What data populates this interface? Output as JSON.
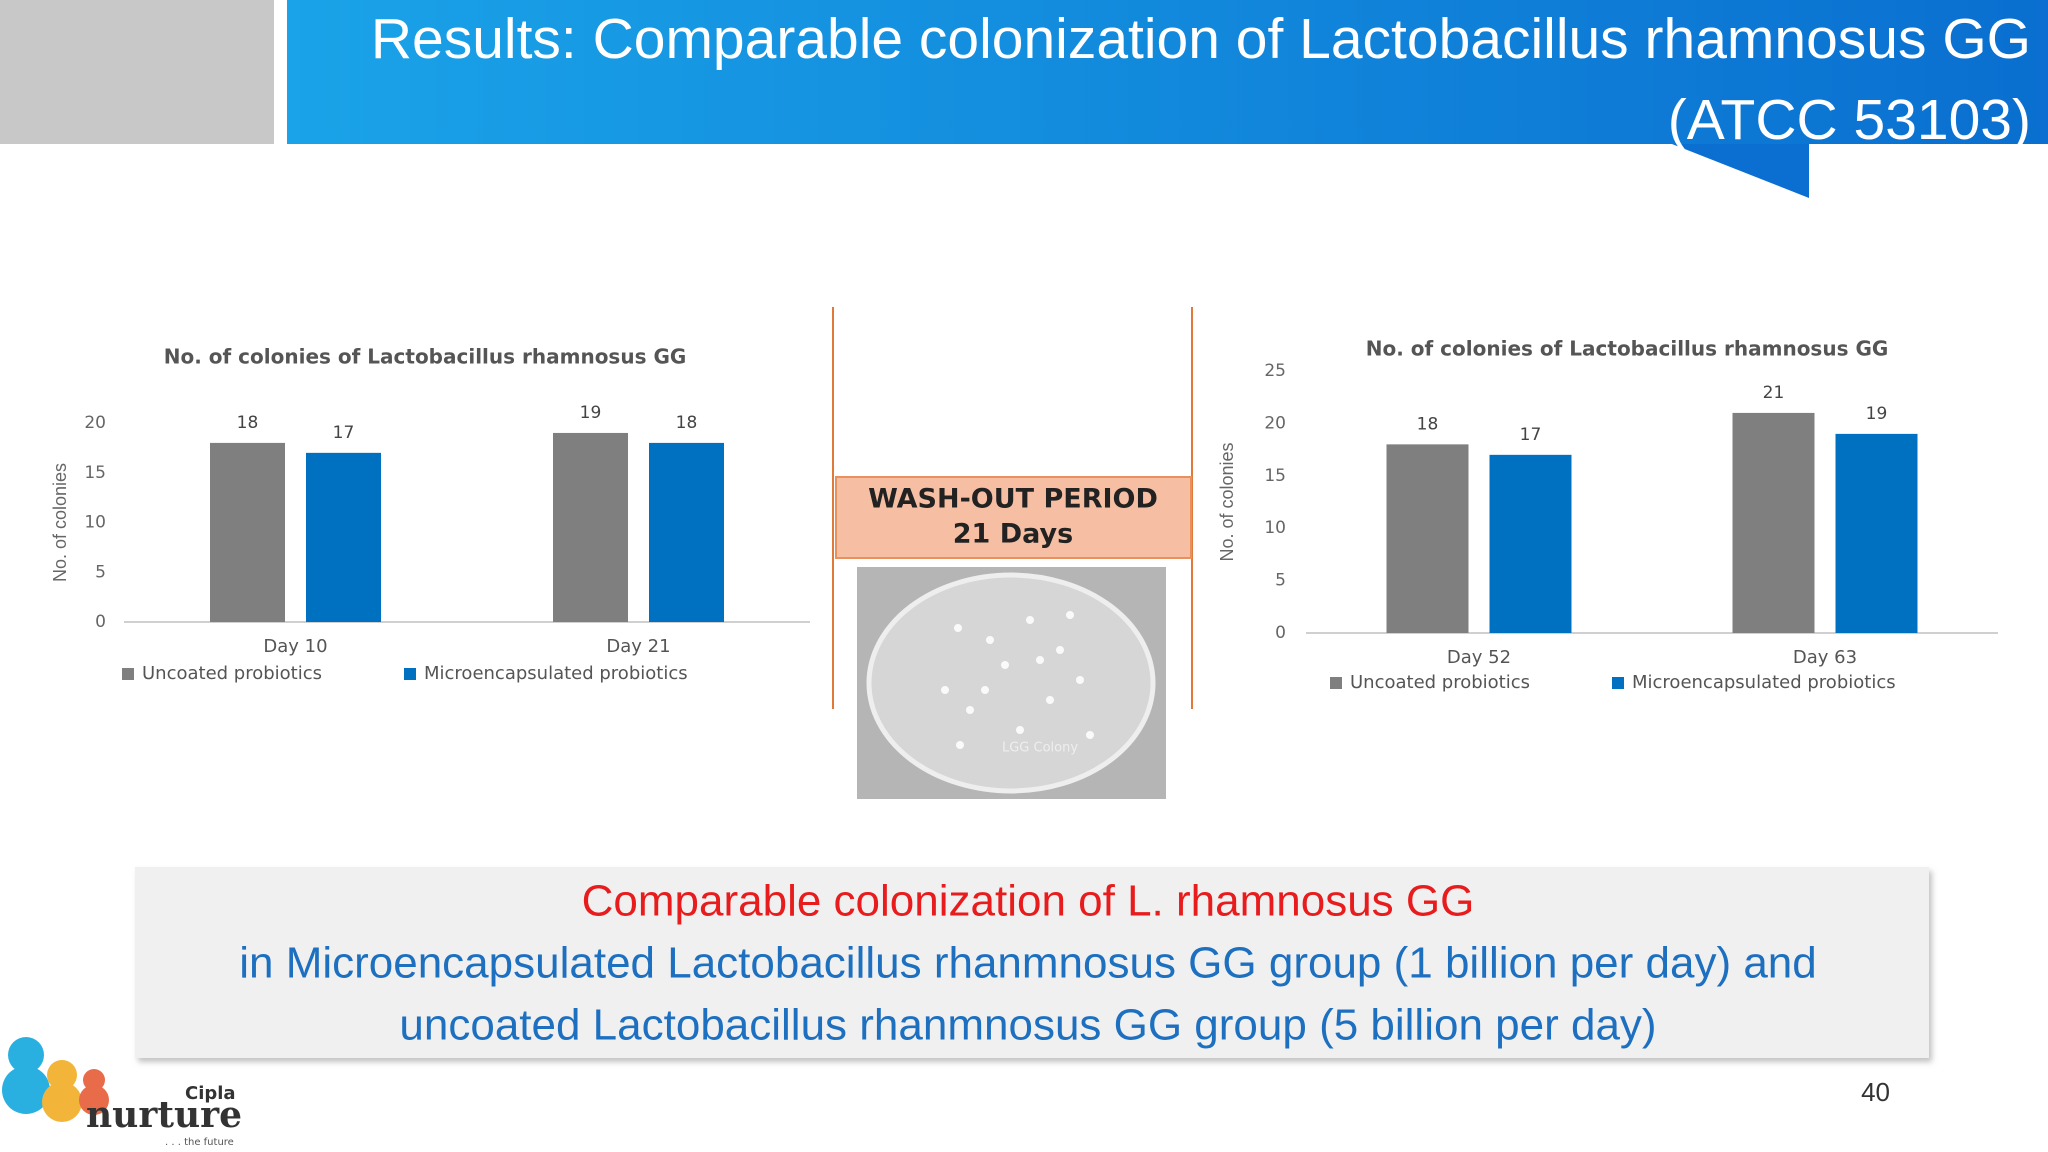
{
  "slide_title": [
    "Results: Comparable colonization of Lactobacillus rhamnosus GG",
    "(ATCC 53103)"
  ],
  "chart_data": [
    {
      "type": "bar",
      "title": "No. of colonies of Lactobacillus rhamnosus GG",
      "ylabel": "No. of colonies",
      "categories": [
        "Day 10",
        "Day 21"
      ],
      "series": [
        {
          "name": "Uncoated probiotics",
          "color": "#7f7f7f",
          "values": [
            18,
            19
          ]
        },
        {
          "name": "Microencapsulated probiotics",
          "color": "#0070c0",
          "values": [
            17,
            18
          ]
        }
      ],
      "ylim": [
        0,
        20
      ],
      "yticks": [
        0,
        5,
        10,
        15,
        20
      ],
      "grid": false,
      "legend": "bottom"
    },
    {
      "type": "bar",
      "title": "No. of colonies of Lactobacillus rhamnosus GG",
      "ylabel": "No. of colonies",
      "categories": [
        "Day 52",
        "Day 63"
      ],
      "series": [
        {
          "name": "Uncoated probiotics",
          "color": "#7f7f7f",
          "values": [
            18,
            21
          ]
        },
        {
          "name": "Microencapsulated probiotics",
          "color": "#0070c0",
          "values": [
            17,
            19
          ]
        }
      ],
      "ylim": [
        0,
        25
      ],
      "yticks": [
        0,
        5,
        10,
        15,
        20,
        25
      ],
      "grid": false,
      "legend": "bottom"
    }
  ],
  "washout": [
    "WASH-OUT PERIOD",
    "21 Days"
  ],
  "plate_label": "LGG Colony",
  "summary": [
    "Comparable colonization of L. rhamnosus GG",
    "in Microencapsulated Lactobacillus rhanmnosus GG group (1 billion per day) and",
    "uncoated Lactobacillus rhanmnosus GG group (5 billion per day)"
  ],
  "page_number": "40",
  "logo": {
    "brand": "Cipla",
    "name": "nurture",
    "tagline": ". . . the future"
  }
}
